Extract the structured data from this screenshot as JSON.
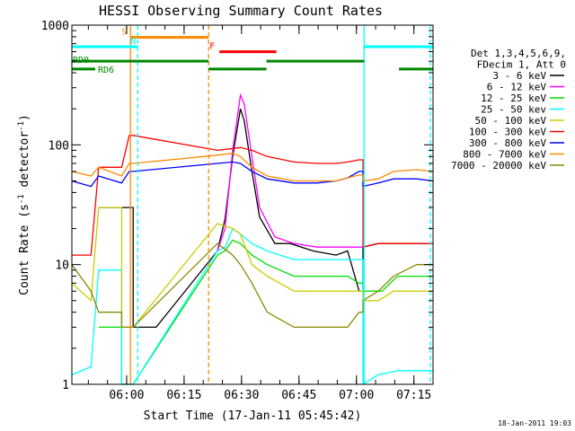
{
  "chart_data": {
    "type": "line",
    "title": "HESSI Observing Summary Count Rates",
    "xlabel": "Start Time (17-Jan-11 05:45:42)",
    "ylabel_parts": [
      "Count Rate (s",
      "-1",
      " detector",
      "-1",
      ")"
    ],
    "yscale": "log",
    "ylim": [
      1,
      1000
    ],
    "xlim_minutes": [
      0,
      94.3
    ],
    "yticks": [
      1,
      10,
      100,
      1000
    ],
    "ytick_labels": [
      "1",
      "10",
      "100",
      "1000"
    ],
    "xticks": [
      {
        "t": 14.3,
        "label": "06:00"
      },
      {
        "t": 29.3,
        "label": "06:15"
      },
      {
        "t": 44.3,
        "label": "06:30"
      },
      {
        "t": 59.3,
        "label": "06:45"
      },
      {
        "t": 74.3,
        "label": "07:00"
      },
      {
        "t": 89.3,
        "label": "07:15"
      }
    ],
    "grid": false,
    "legend_position": "right",
    "legend_header": [
      "Det 1,3,4,5,6,9,",
      "FDecim 1, Att 0"
    ],
    "series": [
      {
        "name": "3 - 6 keV",
        "color": "#000000",
        "points": [
          [
            7,
            30
          ],
          [
            16,
            30
          ],
          [
            16,
            3
          ],
          [
            22,
            3
          ],
          [
            38,
            13
          ],
          [
            40,
            24
          ],
          [
            42,
            80
          ],
          [
            44,
            200
          ],
          [
            45,
            160
          ],
          [
            47,
            60
          ],
          [
            49,
            25
          ],
          [
            53,
            15
          ],
          [
            57,
            15
          ],
          [
            63,
            13
          ],
          [
            69,
            12
          ],
          [
            72,
            13
          ],
          [
            75,
            6
          ],
          [
            76,
            6
          ],
          [
            76,
            14
          ],
          [
            80,
            15
          ],
          [
            94.3,
            15
          ]
        ]
      },
      {
        "name": "6 - 12 keV",
        "color": "#ff00ff",
        "points": [
          [
            38,
            13
          ],
          [
            40,
            20
          ],
          [
            42,
            90
          ],
          [
            44,
            260
          ],
          [
            45,
            220
          ],
          [
            47,
            80
          ],
          [
            49,
            30
          ],
          [
            53,
            17
          ],
          [
            58,
            15
          ],
          [
            64,
            14
          ],
          [
            69,
            14
          ],
          [
            72,
            14
          ],
          [
            75,
            14
          ],
          [
            76,
            14
          ]
        ]
      },
      {
        "name": "12 - 25 keV",
        "color": "#00dd00",
        "points": [
          [
            7,
            3
          ],
          [
            13,
            3
          ],
          [
            13,
            1
          ],
          [
            16,
            1
          ],
          [
            38,
            12
          ],
          [
            40,
            13
          ],
          [
            42,
            16
          ],
          [
            44,
            15
          ],
          [
            47,
            12
          ],
          [
            51,
            10
          ],
          [
            58,
            8
          ],
          [
            64,
            8
          ],
          [
            69,
            8
          ],
          [
            72,
            8
          ],
          [
            75,
            7
          ],
          [
            76,
            7
          ],
          [
            76,
            6
          ],
          [
            81,
            6
          ],
          [
            85,
            8
          ],
          [
            90,
            8
          ],
          [
            94.3,
            8
          ]
        ]
      },
      {
        "name": "25 - 50 kev",
        "color": "#00ffff",
        "points": [
          [
            0,
            1.2
          ],
          [
            5,
            1.4
          ],
          [
            7,
            9
          ],
          [
            13,
            9
          ],
          [
            13,
            1
          ],
          [
            16,
            1
          ],
          [
            38,
            13
          ],
          [
            40,
            14
          ],
          [
            42,
            20
          ],
          [
            44,
            18
          ],
          [
            47,
            15
          ],
          [
            51,
            13
          ],
          [
            58,
            11
          ],
          [
            64,
            11
          ],
          [
            69,
            11
          ],
          [
            72,
            11
          ],
          [
            75,
            11
          ],
          [
            76,
            11
          ],
          [
            76,
            1
          ],
          [
            80,
            1.2
          ],
          [
            85,
            1.3
          ],
          [
            94.3,
            1.3
          ]
        ]
      },
      {
        "name": "50 - 100 keV",
        "color": "#cccc00",
        "points": [
          [
            0,
            7
          ],
          [
            5,
            5
          ],
          [
            7,
            30
          ],
          [
            13,
            30
          ],
          [
            13,
            3
          ],
          [
            16,
            3
          ],
          [
            38,
            22
          ],
          [
            42,
            20
          ],
          [
            44,
            18
          ],
          [
            47,
            10
          ],
          [
            51,
            8
          ],
          [
            58,
            6
          ],
          [
            64,
            6
          ],
          [
            69,
            6
          ],
          [
            72,
            6
          ],
          [
            75,
            6
          ],
          [
            76,
            6
          ],
          [
            76,
            5
          ],
          [
            80,
            5
          ],
          [
            84,
            6
          ],
          [
            90,
            6
          ],
          [
            94.3,
            6
          ]
        ]
      },
      {
        "name": "100 - 300 keV",
        "color": "#ff0000",
        "points": [
          [
            0,
            12
          ],
          [
            5,
            12
          ],
          [
            7,
            65
          ],
          [
            13,
            65
          ],
          [
            15,
            120
          ],
          [
            16,
            120
          ],
          [
            38,
            90
          ],
          [
            44,
            95
          ],
          [
            47,
            90
          ],
          [
            51,
            80
          ],
          [
            58,
            72
          ],
          [
            64,
            70
          ],
          [
            69,
            70
          ],
          [
            72,
            72
          ],
          [
            75,
            75
          ],
          [
            76,
            75
          ],
          [
            76,
            14
          ],
          [
            80,
            15
          ],
          [
            94.3,
            15
          ]
        ]
      },
      {
        "name": "300 - 800 keV",
        "color": "#0000ff",
        "points": [
          [
            0,
            50
          ],
          [
            5,
            45
          ],
          [
            7,
            55
          ],
          [
            13,
            48
          ],
          [
            15,
            60
          ],
          [
            16,
            60
          ],
          [
            38,
            70
          ],
          [
            42,
            72
          ],
          [
            44,
            70
          ],
          [
            47,
            60
          ],
          [
            51,
            52
          ],
          [
            58,
            48
          ],
          [
            64,
            48
          ],
          [
            69,
            50
          ],
          [
            72,
            53
          ],
          [
            75,
            60
          ],
          [
            76,
            60
          ],
          [
            76,
            45
          ],
          [
            80,
            48
          ],
          [
            84,
            52
          ],
          [
            90,
            52
          ],
          [
            94.3,
            50
          ]
        ]
      },
      {
        "name": "800 - 7000 keV",
        "color": "#ff8800",
        "points": [
          [
            0,
            60
          ],
          [
            5,
            55
          ],
          [
            7,
            65
          ],
          [
            13,
            55
          ],
          [
            15,
            70
          ],
          [
            16,
            70
          ],
          [
            38,
            82
          ],
          [
            42,
            85
          ],
          [
            44,
            80
          ],
          [
            47,
            65
          ],
          [
            51,
            55
          ],
          [
            58,
            50
          ],
          [
            64,
            50
          ],
          [
            69,
            50
          ],
          [
            72,
            53
          ],
          [
            75,
            56
          ],
          [
            76,
            56
          ],
          [
            76,
            50
          ],
          [
            80,
            52
          ],
          [
            84,
            60
          ],
          [
            90,
            62
          ],
          [
            94.3,
            60
          ]
        ]
      },
      {
        "name": "7000 - 20000 keV",
        "color": "#888800",
        "points": [
          [
            0,
            10
          ],
          [
            5,
            6
          ],
          [
            7,
            4
          ],
          [
            13,
            4
          ],
          [
            13,
            3
          ],
          [
            16,
            3
          ],
          [
            38,
            15
          ],
          [
            42,
            12
          ],
          [
            44,
            10
          ],
          [
            47,
            7
          ],
          [
            51,
            4
          ],
          [
            58,
            3
          ],
          [
            64,
            3
          ],
          [
            69,
            3
          ],
          [
            72,
            3
          ],
          [
            75,
            4
          ],
          [
            76,
            4
          ],
          [
            76,
            5
          ],
          [
            80,
            6
          ],
          [
            84,
            8
          ],
          [
            90,
            10
          ],
          [
            94.3,
            10
          ]
        ]
      }
    ],
    "vertical_markers": [
      {
        "t": 15.3,
        "color": "#ff8800",
        "style": "solid"
      },
      {
        "t": 17.2,
        "color": "#00ffff",
        "style": "dashed"
      },
      {
        "t": 35.7,
        "color": "#ff8800",
        "style": "dashed"
      },
      {
        "t": 76.3,
        "color": "#00ffff",
        "style": "solid"
      },
      {
        "t": 93.6,
        "color": "#00ffff",
        "style": "dashed"
      }
    ],
    "segments": [
      {
        "label": "S",
        "color": "#ff8800",
        "t0": 15.3,
        "t1": 35.7,
        "y": 790
      },
      {
        "label": "N",
        "color": "#00ffff",
        "t0": 0,
        "t1": 17.2,
        "y": 660
      },
      {
        "label": "",
        "color": "#00ffff",
        "t0": 76.3,
        "t1": 94.3,
        "y": 660
      },
      {
        "label": "F",
        "color": "#ff0000",
        "t0": 38.5,
        "t1": 53.4,
        "y": 600
      },
      {
        "label": "RD0",
        "color": "#008800",
        "t0": 0,
        "t1": 35.7,
        "y": 500
      },
      {
        "label": "",
        "color": "#008800",
        "t0": 50.8,
        "t1": 76.3,
        "y": 500
      },
      {
        "label": "RD6",
        "color": "#008800",
        "t0": 0,
        "t1": 6.1,
        "y": 430
      },
      {
        "label": "",
        "color": "#008800",
        "t0": 35.7,
        "t1": 50.8,
        "y": 430
      },
      {
        "label": "",
        "color": "#008800",
        "t0": 85.4,
        "t1": 94.3,
        "y": 430
      }
    ]
  },
  "footer": {
    "timestamp": "18-Jan-2011 19:03"
  }
}
